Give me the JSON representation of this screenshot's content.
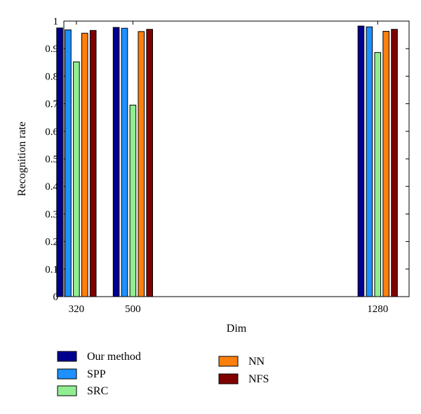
{
  "chart_data": {
    "type": "bar",
    "x": [
      320,
      500,
      1280
    ],
    "x_tick_labels": [
      "320",
      "500",
      "1280"
    ],
    "xlim": [
      280,
      1380
    ],
    "ylim": [
      0,
      1
    ],
    "y_ticks": [
      0,
      0.1,
      0.2,
      0.3,
      0.4,
      0.5,
      0.6,
      0.7,
      0.8,
      0.9,
      1
    ],
    "y_tick_labels": [
      "0",
      "0.1",
      "0.2",
      "0.3",
      "0.4",
      "0.5",
      "0.6",
      "0.7",
      "0.8",
      "0.9",
      "1"
    ],
    "xlabel": "Dim",
    "ylabel": "Recognition rate",
    "grid": false,
    "legend_placement": "below-plot",
    "series": [
      {
        "name": "Our method",
        "color": "#00008f",
        "values": [
          0.975,
          0.977,
          0.982
        ]
      },
      {
        "name": "SPP",
        "color": "#1e90ff",
        "values": [
          0.968,
          0.974,
          0.979
        ]
      },
      {
        "name": "SRC",
        "color": "#90ee90",
        "values": [
          0.852,
          0.695,
          0.886
        ]
      },
      {
        "name": "NN",
        "color": "#ff7f0e",
        "values": [
          0.956,
          0.962,
          0.963
        ]
      },
      {
        "name": "NFS",
        "color": "#800000",
        "values": [
          0.966,
          0.97,
          0.97
        ]
      }
    ]
  }
}
